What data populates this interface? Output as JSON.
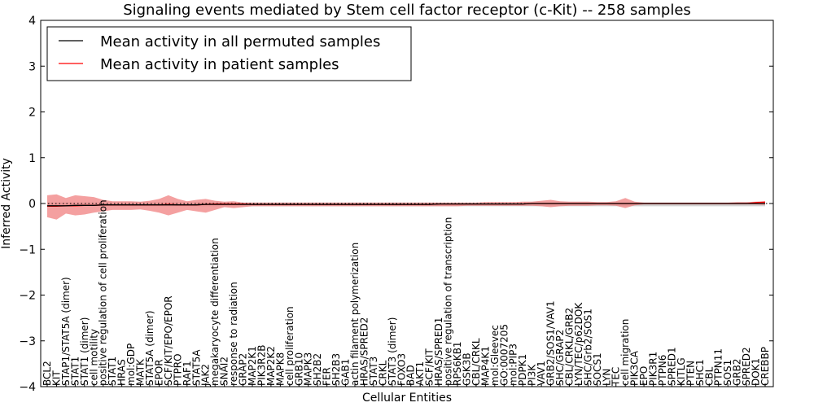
{
  "chart_data": {
    "type": "line",
    "title": "Signaling events mediated by Stem cell factor receptor (c-Kit) -- 258 samples",
    "xlabel": "Cellular Entities",
    "ylabel": "Inferred Activity",
    "ylim": [
      -4,
      4
    ],
    "yticks": [
      -4,
      -3,
      -2,
      -1,
      0,
      1,
      2,
      3,
      4
    ],
    "ytick_labels": [
      "−4",
      "−3",
      "−2",
      "−1",
      "0",
      "1",
      "2",
      "3",
      "4"
    ],
    "legend": {
      "placement": "top-left",
      "entries": [
        {
          "label": "Mean activity in all permuted samples",
          "color": "#000000"
        },
        {
          "label": "Mean activity in patient samples",
          "color": "#ff0000"
        }
      ]
    },
    "colors": {
      "permuted": "#000000",
      "patient": "#ff0000",
      "patient_band": "#f08080",
      "permuted_band": "#c8c8c8"
    },
    "categories": [
      "BCL2",
      "KIT",
      "STAP1/STAT5A (dimer)",
      "STAT1",
      "STAT1 (dimer)",
      "cell motility",
      "positive regulation of cell proliferation",
      "STAT1",
      "HRAS",
      "mol:GDP",
      "MATK",
      "STAT5A (dimer)",
      "EPOR",
      "SCF/KIT/EPO/EPOR",
      "PTPRO",
      "RAF1",
      "STAT5A",
      "JAK2",
      "megakaryocyte differentiation",
      "SNAI2",
      "response to radiation",
      "GRAP2",
      "MAP2K1",
      "PIK3R2B",
      "MAP2K2",
      "MAPK8",
      "cell proliferation",
      "GRB10",
      "MAPK3",
      "SH2B2",
      "FER",
      "SH2B3",
      "GAB1",
      "actin filament polymerization",
      "HRAS/SPRED2",
      "STAT3",
      "CRKL",
      "STAT3 (dimer)",
      "FOXO3",
      "BAD",
      "AKT1",
      "SCF/KIT",
      "HRAS/SPRED1",
      "positive regulation of transcription",
      "RPS6KB1",
      "GSK3B",
      "CBL/CRKL",
      "MAP4K1",
      "mol:Gleevec",
      "GO:0007205",
      "mol:PIP3",
      "PDPK1",
      "PI3K",
      "VAV1",
      "GRB2/SOS1/VAV1",
      "SHC/GRAP2",
      "CBL/CRKL/GRB2",
      "LYN/TEC/p62DOK",
      "SHC/Grb2/SOS1",
      "SOCS1",
      "LYN",
      "TEC",
      "cell migration",
      "PIK3CA",
      "EPO",
      "PIK3R1",
      "PTPN6",
      "SPRED1",
      "KITLG",
      "PTEN",
      "SHC1",
      "CBL",
      "PTPN11",
      "SOS1",
      "GRB2",
      "SPRED2",
      "DOK1",
      "CREBBP"
    ],
    "series": [
      {
        "name": "Mean activity in all permuted samples",
        "values": [
          -0.05,
          -0.05,
          -0.05,
          -0.04,
          -0.04,
          -0.04,
          -0.03,
          -0.03,
          -0.03,
          -0.03,
          -0.03,
          -0.03,
          -0.03,
          -0.03,
          -0.03,
          -0.03,
          -0.03,
          -0.02,
          -0.02,
          -0.02,
          -0.02,
          -0.02,
          -0.02,
          -0.02,
          -0.02,
          -0.02,
          -0.02,
          -0.02,
          -0.02,
          -0.02,
          -0.02,
          -0.02,
          -0.02,
          -0.02,
          -0.02,
          -0.02,
          -0.02,
          -0.02,
          -0.02,
          -0.02,
          -0.02,
          -0.02,
          -0.01,
          -0.01,
          -0.01,
          -0.01,
          -0.01,
          -0.01,
          -0.01,
          -0.01,
          -0.01,
          -0.01,
          0.0,
          0.0,
          0.0,
          0.0,
          0.0,
          0.0,
          0.0,
          0.0,
          0.0,
          0.0,
          0.0,
          0.0,
          0.0,
          0.0,
          0.0,
          0.0,
          0.0,
          0.0,
          0.0,
          0.0,
          0.0,
          0.0,
          0.0,
          0.0,
          0.0,
          0.0
        ]
      },
      {
        "name": "Mean activity in patient samples",
        "values": [
          -0.06,
          -0.06,
          -0.05,
          -0.05,
          -0.04,
          -0.04,
          -0.03,
          -0.03,
          -0.03,
          -0.03,
          -0.03,
          -0.03,
          -0.03,
          -0.02,
          -0.03,
          -0.03,
          -0.03,
          -0.02,
          -0.01,
          -0.01,
          -0.01,
          -0.01,
          -0.02,
          -0.02,
          -0.02,
          -0.02,
          -0.02,
          -0.02,
          -0.02,
          -0.02,
          -0.02,
          -0.02,
          -0.02,
          -0.02,
          -0.02,
          -0.02,
          -0.02,
          -0.02,
          -0.02,
          -0.02,
          -0.02,
          -0.02,
          -0.01,
          -0.01,
          -0.01,
          -0.01,
          -0.01,
          -0.01,
          -0.01,
          -0.01,
          -0.01,
          -0.01,
          0.0,
          0.0,
          0.0,
          0.0,
          0.0,
          0.0,
          0.0,
          0.0,
          0.0,
          0.0,
          0.0,
          0.0,
          0.0,
          0.0,
          0.0,
          0.0,
          0.0,
          0.0,
          0.0,
          0.0,
          0.0,
          0.0,
          0.0,
          0.0,
          0.02,
          0.03
        ]
      },
      {
        "name": "Patient band upper",
        "values": [
          0.18,
          0.2,
          0.12,
          0.18,
          0.16,
          0.14,
          0.08,
          0.05,
          0.05,
          0.05,
          0.04,
          0.06,
          0.1,
          0.18,
          0.1,
          0.05,
          0.08,
          0.1,
          0.06,
          0.04,
          0.05,
          0.02,
          0.02,
          0.02,
          0.02,
          0.02,
          0.02,
          0.02,
          0.02,
          0.02,
          0.02,
          0.02,
          0.02,
          0.02,
          0.02,
          0.02,
          0.02,
          0.02,
          0.02,
          0.02,
          0.02,
          0.02,
          0.02,
          0.02,
          0.02,
          0.02,
          0.02,
          0.03,
          0.03,
          0.03,
          0.03,
          0.04,
          0.04,
          0.06,
          0.08,
          0.05,
          0.04,
          0.04,
          0.04,
          0.03,
          0.03,
          0.05,
          0.12,
          0.04,
          0.02,
          0.02,
          0.02,
          0.02,
          0.02,
          0.02,
          0.02,
          0.02,
          0.02,
          0.02,
          0.03,
          0.03,
          0.04,
          0.05
        ]
      },
      {
        "name": "Patient band lower",
        "values": [
          -0.3,
          -0.35,
          -0.22,
          -0.26,
          -0.24,
          -0.2,
          -0.17,
          -0.14,
          -0.14,
          -0.14,
          -0.13,
          -0.16,
          -0.2,
          -0.26,
          -0.2,
          -0.14,
          -0.17,
          -0.2,
          -0.14,
          -0.08,
          -0.1,
          -0.08,
          -0.06,
          -0.06,
          -0.06,
          -0.06,
          -0.06,
          -0.06,
          -0.06,
          -0.06,
          -0.06,
          -0.06,
          -0.06,
          -0.06,
          -0.06,
          -0.06,
          -0.06,
          -0.06,
          -0.06,
          -0.06,
          -0.06,
          -0.06,
          -0.06,
          -0.06,
          -0.06,
          -0.05,
          -0.05,
          -0.05,
          -0.05,
          -0.05,
          -0.05,
          -0.05,
          -0.05,
          -0.06,
          -0.08,
          -0.06,
          -0.05,
          -0.05,
          -0.05,
          -0.04,
          -0.04,
          -0.05,
          -0.1,
          -0.04,
          -0.02,
          -0.02,
          -0.02,
          -0.02,
          -0.02,
          -0.02,
          -0.02,
          -0.02,
          -0.02,
          -0.02,
          -0.02,
          -0.02,
          -0.02,
          -0.03
        ]
      },
      {
        "name": "Permuted band upper",
        "values": [
          0.02,
          0.02,
          0.02,
          0.02,
          0.02,
          0.02,
          0.02,
          0.02,
          0.02,
          0.02,
          0.02,
          0.02,
          0.02,
          0.02,
          0.02,
          0.02,
          0.02,
          0.02,
          0.02,
          0.02,
          0.02,
          0.02,
          0.02,
          0.02,
          0.02,
          0.02,
          0.02,
          0.02,
          0.02,
          0.02,
          0.02,
          0.02,
          0.02,
          0.02,
          0.02,
          0.02,
          0.02,
          0.02,
          0.02,
          0.02,
          0.02,
          0.02,
          0.02,
          0.02,
          0.02,
          0.02,
          0.02,
          0.02,
          0.02,
          0.02,
          0.02,
          0.02,
          0.02,
          0.02,
          0.02,
          0.02,
          0.02,
          0.02,
          0.02,
          0.02,
          0.02,
          0.02,
          0.02,
          0.02,
          0.02,
          0.02,
          0.02,
          0.02,
          0.02,
          0.02,
          0.02,
          0.02,
          0.02,
          0.02,
          0.02,
          0.02,
          0.02,
          0.02
        ]
      },
      {
        "name": "Permuted band lower",
        "values": [
          -0.06,
          -0.06,
          -0.06,
          -0.06,
          -0.06,
          -0.06,
          -0.06,
          -0.06,
          -0.06,
          -0.06,
          -0.06,
          -0.06,
          -0.06,
          -0.06,
          -0.06,
          -0.06,
          -0.06,
          -0.06,
          -0.06,
          -0.06,
          -0.06,
          -0.06,
          -0.06,
          -0.06,
          -0.06,
          -0.06,
          -0.06,
          -0.06,
          -0.06,
          -0.06,
          -0.06,
          -0.06,
          -0.06,
          -0.06,
          -0.06,
          -0.06,
          -0.06,
          -0.06,
          -0.06,
          -0.06,
          -0.06,
          -0.06,
          -0.06,
          -0.06,
          -0.06,
          -0.06,
          -0.06,
          -0.06,
          -0.06,
          -0.06,
          -0.06,
          -0.06,
          -0.06,
          -0.06,
          -0.06,
          -0.06,
          -0.06,
          -0.06,
          -0.06,
          -0.06,
          -0.06,
          -0.06,
          -0.06,
          -0.06,
          -0.06,
          -0.06,
          -0.06,
          -0.06,
          -0.06,
          -0.06,
          -0.06,
          -0.06,
          -0.06,
          -0.06,
          -0.06,
          -0.06,
          -0.06,
          -0.06
        ]
      }
    ]
  }
}
